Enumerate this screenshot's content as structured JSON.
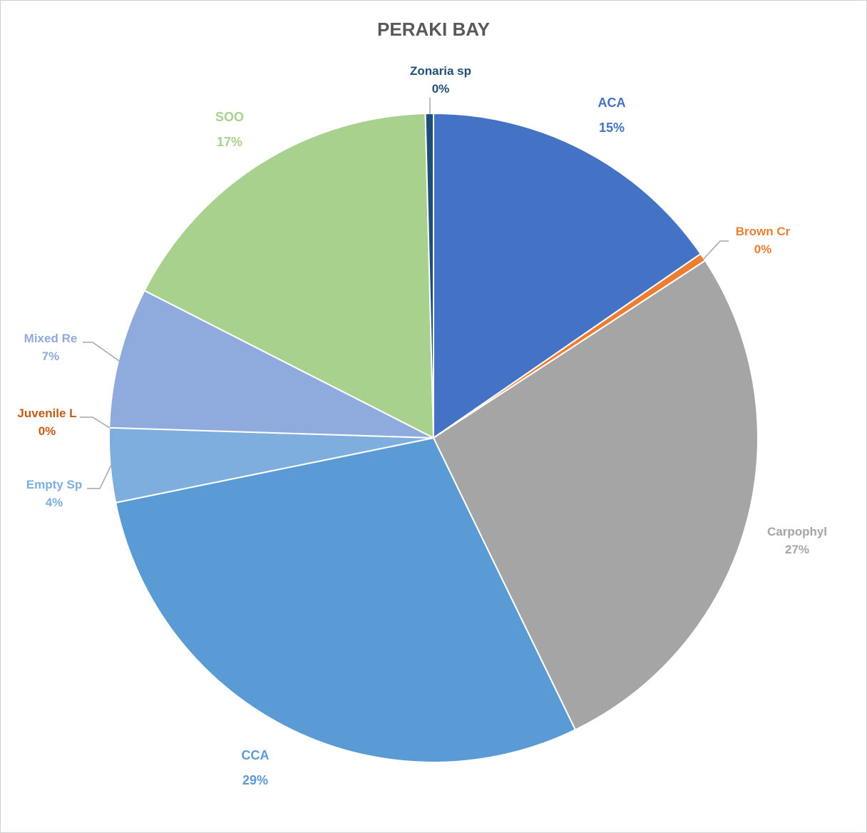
{
  "chart_data": {
    "type": "pie",
    "title": "PERAKI BAY",
    "slices": [
      {
        "name": "ACA",
        "value": 15.4,
        "percent_label": "15%",
        "color": "#4472C4",
        "label_color": "#4472C4"
      },
      {
        "name": "Brown Cr",
        "value": 0.4,
        "percent_label": "0%",
        "color": "#ED7D31",
        "label_color": "#ED7D31"
      },
      {
        "name": "Carpophyl",
        "value": 27.0,
        "percent_label": "27%",
        "color": "#A5A5A5",
        "label_color": "#A5A5A5"
      },
      {
        "name": "CCA",
        "value": 29.0,
        "percent_label": "29%",
        "color": "#5B9BD5",
        "label_color": "#5B9BD5"
      },
      {
        "name": "Empty Sp",
        "value": 3.7,
        "percent_label": "4%",
        "color": "#7EAEDD",
        "label_color": "#7EAEDD"
      },
      {
        "name": "Juvenile L",
        "value": 0.0,
        "percent_label": "0%",
        "color": "#C55A11",
        "label_color": "#C55A11"
      },
      {
        "name": "Mixed Re",
        "value": 7.0,
        "percent_label": "7%",
        "color": "#8FAADC",
        "label_color": "#8FAADC"
      },
      {
        "name": "SOO",
        "value": 17.1,
        "percent_label": "17%",
        "color": "#A9D18E",
        "label_color": "#A9D18E"
      },
      {
        "name": "Zonaria sp",
        "value": 0.4,
        "percent_label": "0%",
        "color": "#1F4E79",
        "label_color": "#1F4E79"
      }
    ]
  }
}
